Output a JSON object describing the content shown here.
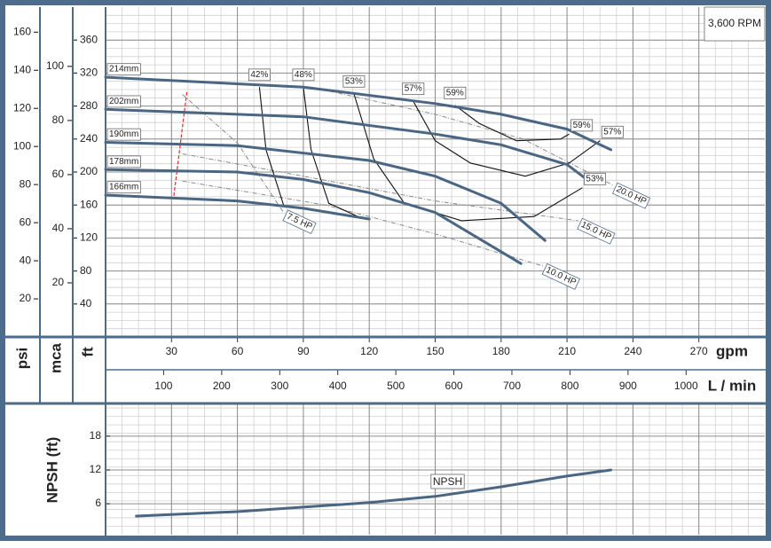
{
  "chart_data": [
    {
      "type": "line",
      "annotation": "3,600 RPM",
      "xlabel": "gpm",
      "xlim": [
        0,
        300
      ],
      "xticks": [
        30,
        60,
        90,
        120,
        150,
        180,
        210,
        240,
        270
      ],
      "x2label": "L / min",
      "x2lim": [
        0,
        1135.6
      ],
      "x2ticks": [
        100,
        200,
        300,
        400,
        500,
        600,
        700,
        800,
        900,
        1000
      ],
      "ylabel": "ft",
      "ylim": [
        0,
        400
      ],
      "yticks": [
        40,
        80,
        120,
        160,
        200,
        240,
        280,
        320,
        360
      ],
      "y2label": "mca",
      "y2lim": [
        0,
        121.9
      ],
      "y2ticks": [
        20,
        40,
        60,
        80,
        100
      ],
      "y3label": "psi",
      "y3lim": [
        0,
        173.2
      ],
      "y3ticks": [
        20,
        40,
        60,
        80,
        100,
        120,
        140,
        160
      ],
      "grid": true,
      "series": [
        {
          "name": "214mm",
          "color": "#4a6683",
          "x": [
            0,
            90,
            150,
            180,
            210,
            230
          ],
          "values": [
            315,
            303,
            283,
            270,
            252,
            227
          ]
        },
        {
          "name": "202mm",
          "color": "#4a6683",
          "x": [
            0,
            90,
            150,
            180,
            210,
            220
          ],
          "values": [
            276,
            267,
            246,
            233,
            209,
            189
          ]
        },
        {
          "name": "190mm",
          "color": "#4a6683",
          "x": [
            0,
            60,
            120,
            150,
            180,
            200
          ],
          "values": [
            236,
            232,
            214,
            195,
            162,
            117
          ]
        },
        {
          "name": "178mm",
          "color": "#4a6683",
          "x": [
            0,
            60,
            90,
            120,
            150,
            189
          ],
          "values": [
            203,
            200,
            191,
            175,
            151,
            89
          ]
        },
        {
          "name": "166mm",
          "color": "#4a6683",
          "x": [
            0,
            60,
            90,
            120
          ],
          "values": [
            172,
            165,
            156,
            143
          ]
        }
      ],
      "efficiency_curves": [
        {
          "name": "42%",
          "color": "#111111",
          "label_at": [
            "start"
          ],
          "x": [
            70,
            73,
            81
          ],
          "values": [
            303,
            227,
            160
          ]
        },
        {
          "name": "48%",
          "color": "#111111",
          "label_at": [
            "start"
          ],
          "x": [
            90,
            93.5,
            101.6,
            115.8
          ],
          "values": [
            303,
            227,
            162,
            145
          ]
        },
        {
          "name": "53%",
          "color": "#111111",
          "label_at": [
            "start",
            "end"
          ],
          "x": [
            113,
            122,
            136,
            162,
            195,
            217
          ],
          "values": [
            295,
            216,
            162,
            141,
            146,
            181
          ]
        },
        {
          "name": "57%",
          "color": "#111111",
          "label_at": [
            "start",
            "end"
          ],
          "x": [
            140,
            150,
            166,
            191,
            211,
            225
          ],
          "values": [
            286,
            238,
            211,
            195,
            211,
            238
          ]
        },
        {
          "name": "59%",
          "color": "#111111",
          "label_at": [
            "start",
            "end"
          ],
          "x": [
            159,
            170,
            187,
            207,
            211
          ],
          "values": [
            281,
            259,
            238,
            240,
            246
          ]
        }
      ],
      "power_lines": [
        {
          "name": "7.5 HP",
          "color": "#8a8a8a",
          "x": [
            35,
            60,
            81
          ],
          "values": [
            294,
            235,
            151
          ]
        },
        {
          "name": "10.0 HP",
          "color": "#8a8a8a",
          "x": [
            35,
            100,
            150,
            199
          ],
          "values": [
            189,
            160,
            125,
            86
          ]
        },
        {
          "name": "15.0 HP",
          "color": "#8a8a8a",
          "x": [
            35,
            90,
            150,
            215
          ],
          "values": [
            222,
            195,
            165,
            141
          ]
        },
        {
          "name": "20.0 HP",
          "color": "#8a8a8a",
          "x": [
            102,
            150,
            190,
            231
          ],
          "values": [
            298,
            270,
            240,
            184
          ]
        }
      ],
      "min_flow_line": {
        "color": "#e03030",
        "x": [
          37,
          31
        ],
        "values": [
          297,
          170
        ]
      }
    },
    {
      "type": "line",
      "ylabel": "NPSH (ft)",
      "xlim": [
        0,
        300
      ],
      "ylim": [
        0.5,
        23.8
      ],
      "yticks": [
        6,
        12,
        18
      ],
      "grid": true,
      "series": [
        {
          "name": "NPSH",
          "color": "#4a6683",
          "x": [
            14,
            60,
            90,
            120,
            150,
            180,
            210,
            230
          ],
          "values": [
            3.8,
            4.6,
            5.4,
            6.2,
            7.3,
            9.0,
            10.9,
            12.0
          ]
        }
      ]
    }
  ]
}
